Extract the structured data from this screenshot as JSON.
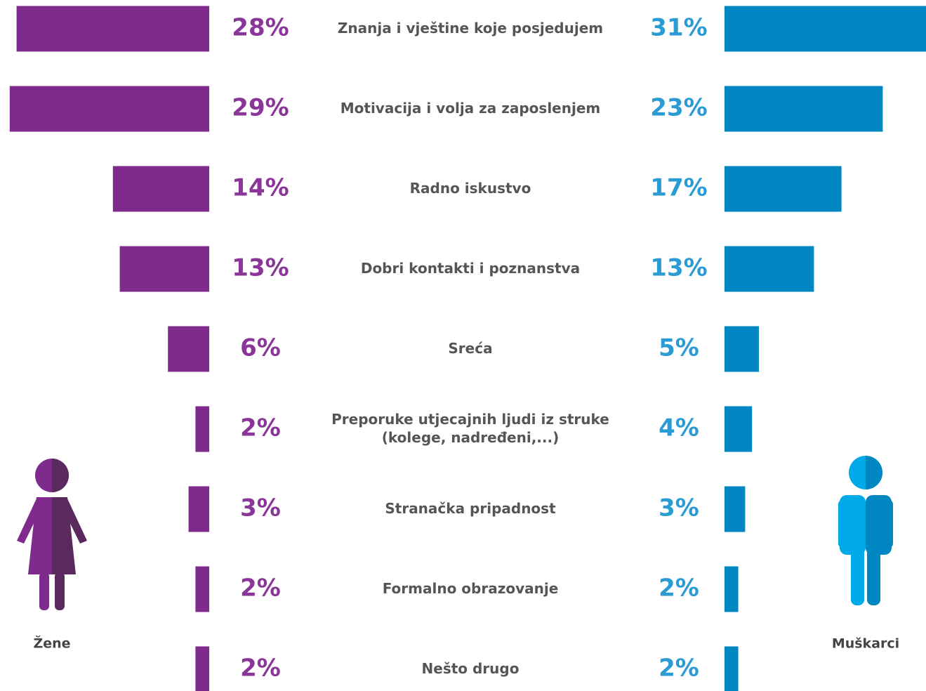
{
  "chart_data": {
    "type": "butterfly",
    "categories": [
      "Znanja i vještine koje posjedujem",
      "Motivacija i volja za zaposlenjem",
      "Radno iskustvo",
      "Dobri kontakti i poznanstva",
      "Sreća",
      "Preporuke utjecajnih ljudi iz struke\n(kolege, nadređeni,...)",
      "Stranačka pripadnost",
      "Formalno obrazovanje",
      "Nešto drugo"
    ],
    "series": [
      {
        "name": "Žene",
        "color": "#7f2b8e",
        "values": [
          28,
          29,
          14,
          13,
          6,
          2,
          3,
          2,
          2
        ],
        "value_labels": [
          "28%",
          "29%",
          "14%",
          "13%",
          "6%",
          "2%",
          "3%",
          "2%",
          "2%"
        ]
      },
      {
        "name": "Muškarci",
        "color": "#0087c1",
        "values": [
          31,
          23,
          17,
          13,
          5,
          4,
          3,
          2,
          2
        ],
        "value_labels": [
          "31%",
          "23%",
          "17%",
          "13%",
          "5%",
          "4%",
          "3%",
          "2%",
          "2%"
        ]
      }
    ]
  }
}
